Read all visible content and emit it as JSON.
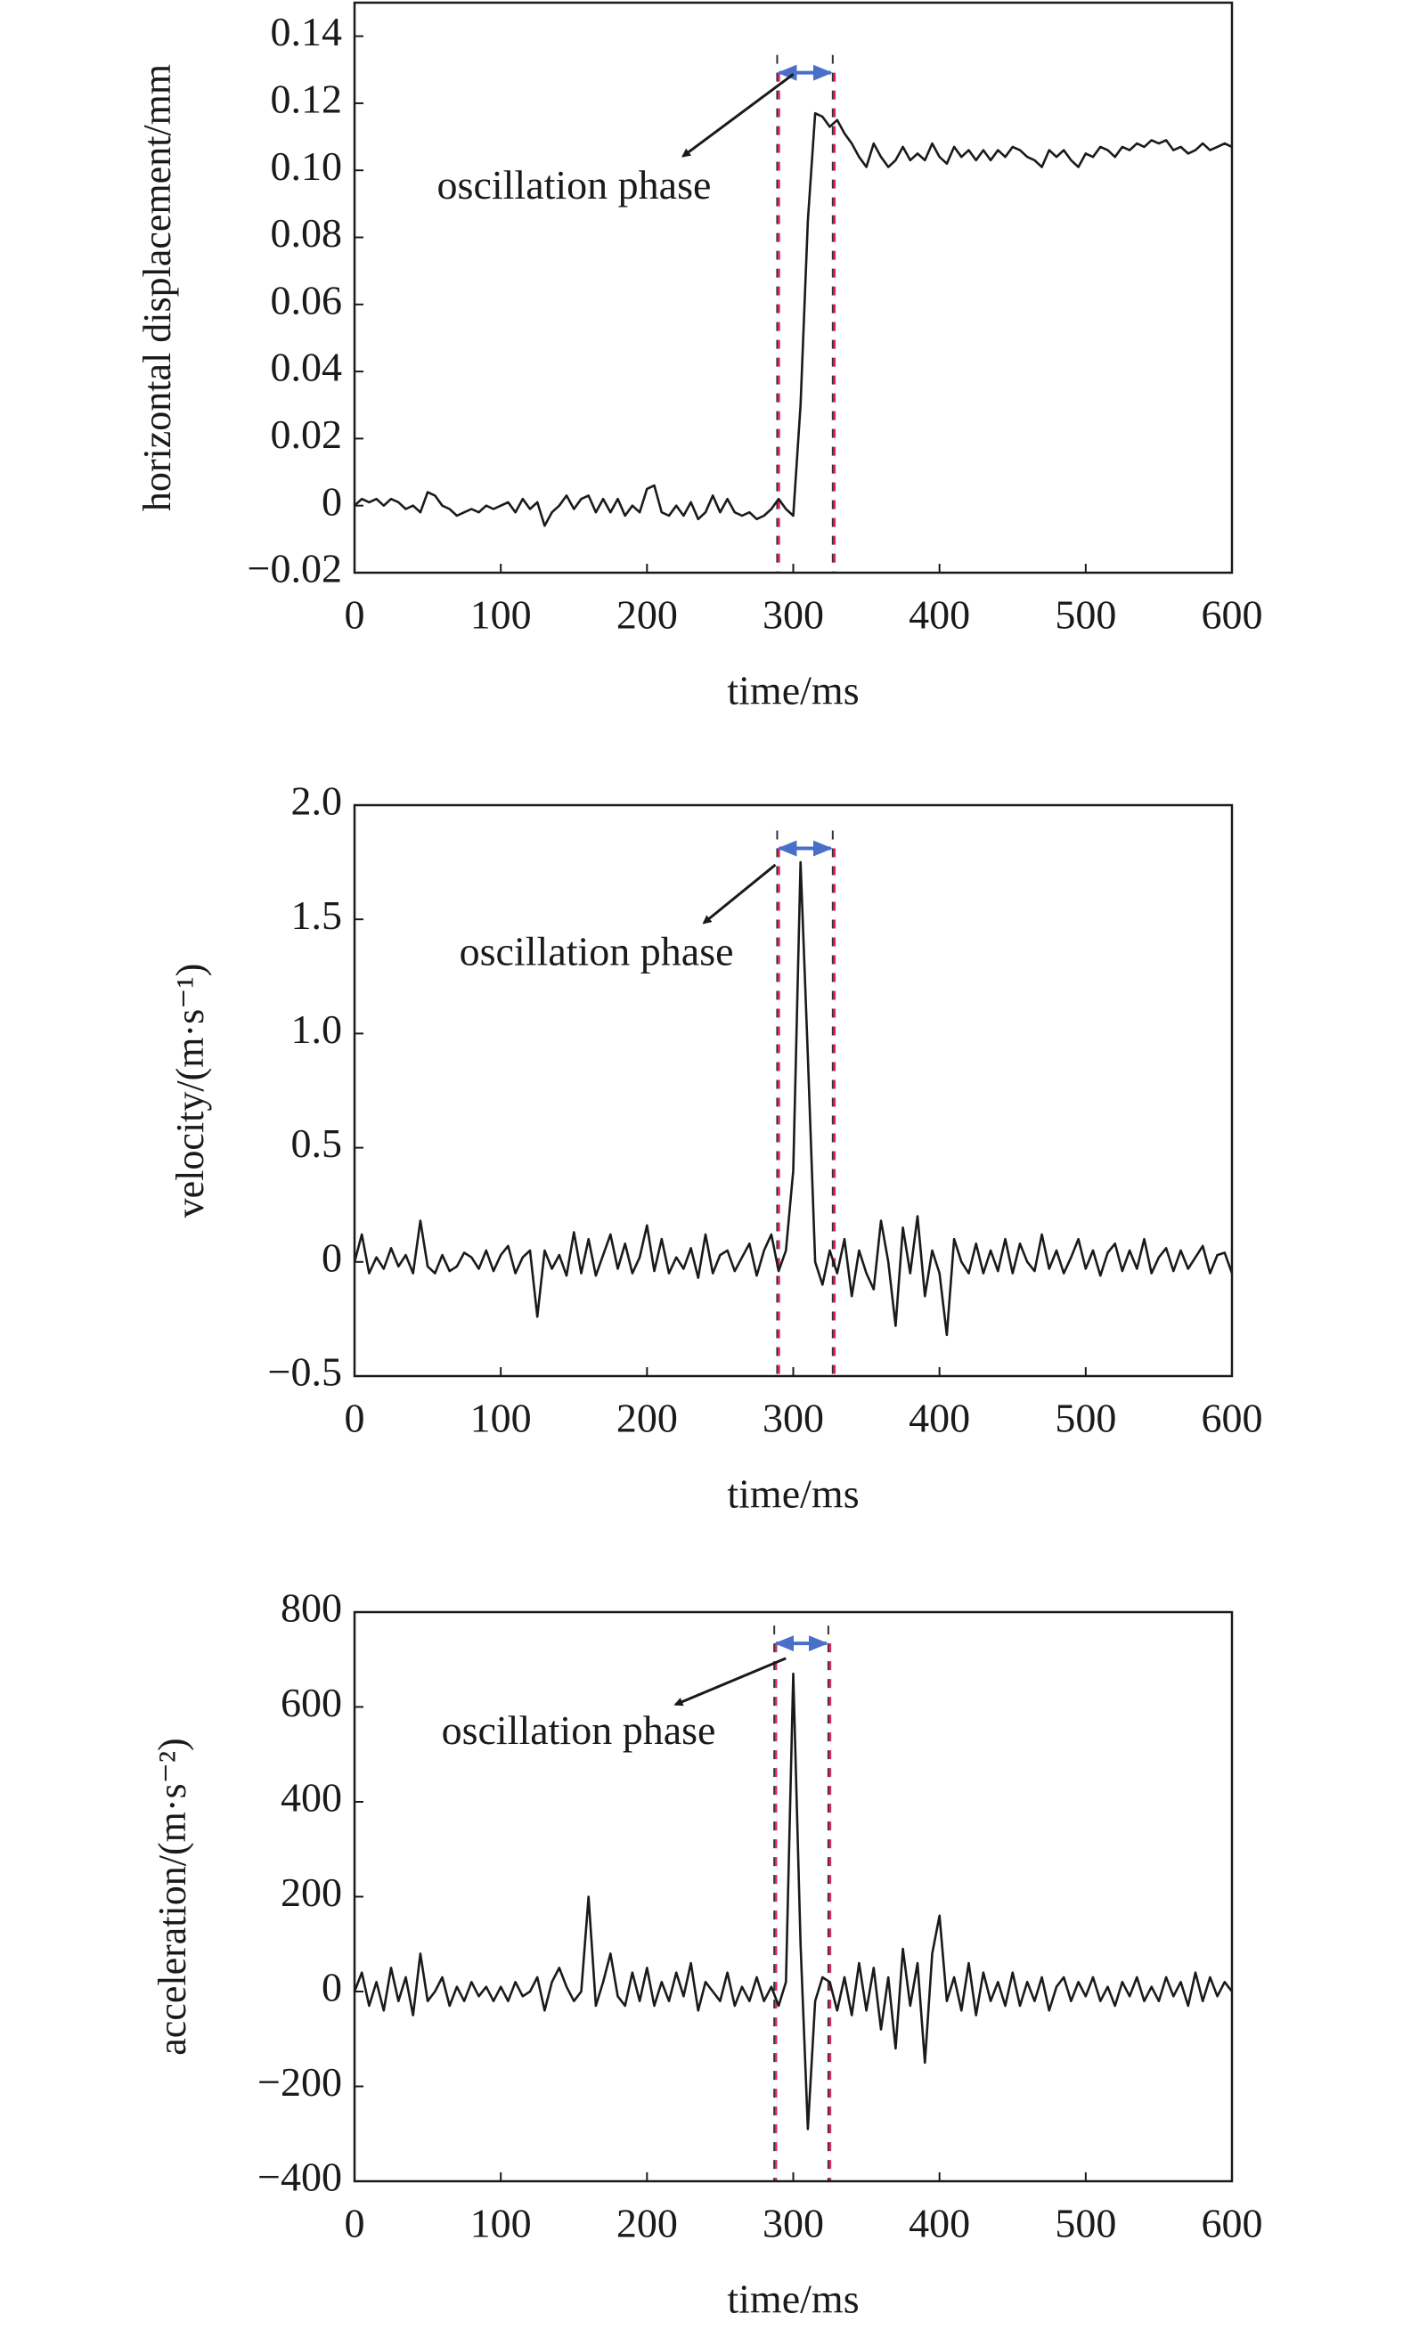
{
  "chart_data": [
    {
      "type": "line",
      "ylabel": "horizontal displacement/mm",
      "xlabel": "time/ms",
      "annotation": "oscillation phase",
      "color": "#1a1a1a",
      "phase_lines": [
        289,
        327
      ],
      "xlim": [
        0,
        600
      ],
      "xticks": [
        0,
        100,
        200,
        300,
        400,
        500,
        600
      ],
      "ylim": [
        -0.02,
        0.15
      ],
      "yticks": [
        {
          "value": -0.02,
          "label": "−0.02"
        },
        0,
        0.02,
        0.04,
        0.06,
        0.08,
        {
          "value": 0.1,
          "label": "0.10"
        },
        0.12,
        0.14
      ],
      "x": [
        0,
        5,
        10,
        15,
        20,
        25,
        30,
        35,
        40,
        45,
        50,
        55,
        60,
        65,
        70,
        75,
        80,
        85,
        90,
        95,
        100,
        105,
        110,
        115,
        120,
        125,
        130,
        135,
        140,
        145,
        150,
        155,
        160,
        165,
        170,
        175,
        180,
        185,
        190,
        195,
        200,
        205,
        210,
        215,
        220,
        225,
        230,
        235,
        240,
        245,
        250,
        255,
        260,
        265,
        270,
        275,
        280,
        285,
        290,
        295,
        300,
        305,
        310,
        315,
        320,
        325,
        330,
        335,
        340,
        345,
        350,
        355,
        360,
        365,
        370,
        375,
        380,
        385,
        390,
        395,
        400,
        405,
        410,
        415,
        420,
        425,
        430,
        435,
        440,
        445,
        450,
        455,
        460,
        465,
        470,
        475,
        480,
        485,
        490,
        495,
        500,
        505,
        510,
        515,
        520,
        525,
        530,
        535,
        540,
        545,
        550,
        555,
        560,
        565,
        570,
        575,
        580,
        585,
        590,
        595,
        600
      ],
      "values": [
        0,
        0.002,
        0.001,
        0.002,
        0,
        0.002,
        0.001,
        -0.001,
        0,
        -0.002,
        0.004,
        0.003,
        0,
        -0.001,
        -0.003,
        -0.002,
        -0.001,
        -0.002,
        0,
        -0.001,
        0,
        0.001,
        -0.002,
        0.002,
        -0.001,
        0.001,
        -0.006,
        -0.002,
        0,
        0.003,
        -0.001,
        0.002,
        0.003,
        -0.002,
        0.002,
        -0.002,
        0.002,
        -0.003,
        0,
        -0.002,
        0.005,
        0.006,
        -0.002,
        -0.003,
        0,
        -0.003,
        0.001,
        -0.004,
        -0.002,
        0.003,
        -0.002,
        0.002,
        -0.002,
        -0.003,
        -0.002,
        -0.004,
        -0.003,
        -0.001,
        0.002,
        -0.001,
        -0.003,
        0.03,
        0.085,
        0.117,
        0.116,
        0.113,
        0.115,
        0.111,
        0.108,
        0.104,
        0.101,
        0.108,
        0.104,
        0.101,
        0.103,
        0.107,
        0.103,
        0.105,
        0.103,
        0.108,
        0.104,
        0.102,
        0.107,
        0.104,
        0.106,
        0.103,
        0.106,
        0.103,
        0.106,
        0.104,
        0.107,
        0.106,
        0.104,
        0.103,
        0.101,
        0.106,
        0.104,
        0.106,
        0.103,
        0.101,
        0.105,
        0.104,
        0.107,
        0.106,
        0.104,
        0.107,
        0.106,
        0.108,
        0.107,
        0.109,
        0.108,
        0.109,
        0.106,
        0.107,
        0.105,
        0.106,
        0.108,
        0.106,
        0.107,
        0.108,
        0.107
      ]
    },
    {
      "type": "line",
      "ylabel": "velocity/(m·s⁻¹)",
      "xlabel": "time/ms",
      "annotation": "oscillation phase",
      "color": "#1a1a1a",
      "phase_lines": [
        289,
        327
      ],
      "xlim": [
        0,
        600
      ],
      "xticks": [
        0,
        100,
        200,
        300,
        400,
        500,
        600
      ],
      "ylim": [
        -0.5,
        2.0
      ],
      "yticks": [
        {
          "value": -0.5,
          "label": "−0.5"
        },
        0,
        0.5,
        {
          "value": 1,
          "label": "1.0"
        },
        1.5,
        {
          "value": 2,
          "label": "2.0"
        }
      ],
      "x": [
        0,
        5,
        10,
        15,
        20,
        25,
        30,
        35,
        40,
        45,
        50,
        55,
        60,
        65,
        70,
        75,
        80,
        85,
        90,
        95,
        100,
        105,
        110,
        115,
        120,
        125,
        130,
        135,
        140,
        145,
        150,
        155,
        160,
        165,
        170,
        175,
        180,
        185,
        190,
        195,
        200,
        205,
        210,
        215,
        220,
        225,
        230,
        235,
        240,
        245,
        250,
        255,
        260,
        265,
        270,
        275,
        280,
        285,
        290,
        295,
        300,
        305,
        310,
        315,
        320,
        325,
        330,
        335,
        340,
        345,
        350,
        355,
        360,
        365,
        370,
        375,
        380,
        385,
        390,
        395,
        400,
        405,
        410,
        415,
        420,
        425,
        430,
        435,
        440,
        445,
        450,
        455,
        460,
        465,
        470,
        475,
        480,
        485,
        490,
        495,
        500,
        505,
        510,
        515,
        520,
        525,
        530,
        535,
        540,
        545,
        550,
        555,
        560,
        565,
        570,
        575,
        580,
        585,
        590,
        595,
        600
      ],
      "values": [
        0,
        0.12,
        -0.05,
        0.02,
        -0.03,
        0.06,
        -0.02,
        0.03,
        -0.05,
        0.18,
        -0.02,
        -0.05,
        0.03,
        -0.04,
        -0.02,
        0.04,
        0.02,
        -0.03,
        0.05,
        -0.04,
        0.03,
        0.07,
        -0.05,
        0.02,
        0.05,
        -0.24,
        0.05,
        -0.03,
        0.03,
        -0.06,
        0.13,
        -0.05,
        0.1,
        -0.06,
        0.03,
        0.12,
        -0.03,
        0.08,
        -0.05,
        0.02,
        0.16,
        -0.04,
        0.1,
        -0.05,
        0.02,
        -0.03,
        0.06,
        -0.07,
        0.12,
        -0.05,
        0.03,
        0.05,
        -0.04,
        0.02,
        0.08,
        -0.06,
        0.05,
        0.12,
        -0.04,
        0.05,
        0.4,
        1.75,
        0.9,
        0,
        -0.1,
        0.05,
        -0.05,
        0.1,
        -0.15,
        0.05,
        -0.05,
        -0.12,
        0.18,
        0,
        -0.28,
        0.15,
        -0.05,
        0.2,
        -0.15,
        0.05,
        -0.05,
        -0.32,
        0.1,
        0,
        -0.05,
        0.08,
        -0.05,
        0.05,
        -0.04,
        0.1,
        -0.05,
        0.08,
        0,
        -0.04,
        0.12,
        -0.03,
        0.05,
        -0.05,
        0.02,
        0.1,
        -0.03,
        0.05,
        -0.06,
        0.04,
        0.08,
        -0.04,
        0.05,
        -0.03,
        0.1,
        -0.05,
        0.02,
        0.06,
        -0.04,
        0.05,
        -0.03,
        0.02,
        0.07,
        -0.05,
        0.03,
        0.04,
        -0.05
      ]
    },
    {
      "type": "line",
      "ylabel": "acceleration/(m·s⁻²)",
      "xlabel": "time/ms",
      "annotation": "oscillation phase",
      "color": "#1a1a1a",
      "phase_lines": [
        287,
        324
      ],
      "xlim": [
        0,
        600
      ],
      "xticks": [
        0,
        100,
        200,
        300,
        400,
        500,
        600
      ],
      "ylim": [
        -400,
        800
      ],
      "yticks": [
        {
          "value": -400,
          "label": "−400"
        },
        {
          "value": -200,
          "label": "−200"
        },
        0,
        200,
        400,
        600,
        800
      ],
      "x": [
        0,
        5,
        10,
        15,
        20,
        25,
        30,
        35,
        40,
        45,
        50,
        55,
        60,
        65,
        70,
        75,
        80,
        85,
        90,
        95,
        100,
        105,
        110,
        115,
        120,
        125,
        130,
        135,
        140,
        145,
        150,
        155,
        160,
        165,
        170,
        175,
        180,
        185,
        190,
        195,
        200,
        205,
        210,
        215,
        220,
        225,
        230,
        235,
        240,
        245,
        250,
        255,
        260,
        265,
        270,
        275,
        280,
        285,
        290,
        295,
        300,
        305,
        310,
        315,
        320,
        325,
        330,
        335,
        340,
        345,
        350,
        355,
        360,
        365,
        370,
        375,
        380,
        385,
        390,
        395,
        400,
        405,
        410,
        415,
        420,
        425,
        430,
        435,
        440,
        445,
        450,
        455,
        460,
        465,
        470,
        475,
        480,
        485,
        490,
        495,
        500,
        505,
        510,
        515,
        520,
        525,
        530,
        535,
        540,
        545,
        550,
        555,
        560,
        565,
        570,
        575,
        580,
        585,
        590,
        595,
        600
      ],
      "values": [
        0,
        40,
        -30,
        20,
        -40,
        50,
        -20,
        30,
        -50,
        80,
        -20,
        0,
        30,
        -30,
        10,
        -20,
        20,
        -10,
        10,
        -20,
        10,
        -20,
        20,
        -10,
        0,
        30,
        -40,
        20,
        50,
        10,
        -20,
        0,
        200,
        -30,
        20,
        80,
        -10,
        -30,
        40,
        -20,
        50,
        -30,
        20,
        -20,
        40,
        -10,
        60,
        -40,
        20,
        0,
        -20,
        40,
        -30,
        10,
        -20,
        30,
        -20,
        10,
        -30,
        20,
        670,
        100,
        -290,
        -20,
        30,
        20,
        -40,
        30,
        -50,
        60,
        -40,
        50,
        -80,
        30,
        -120,
        90,
        -30,
        60,
        -150,
        80,
        160,
        -20,
        30,
        -40,
        60,
        -50,
        40,
        -20,
        20,
        -30,
        40,
        -30,
        20,
        -20,
        30,
        -40,
        10,
        30,
        -20,
        20,
        -10,
        30,
        -20,
        10,
        -30,
        20,
        -10,
        30,
        -20,
        10,
        -20,
        30,
        -10,
        20,
        -30,
        40,
        -20,
        30,
        -10,
        20,
        0
      ]
    }
  ]
}
